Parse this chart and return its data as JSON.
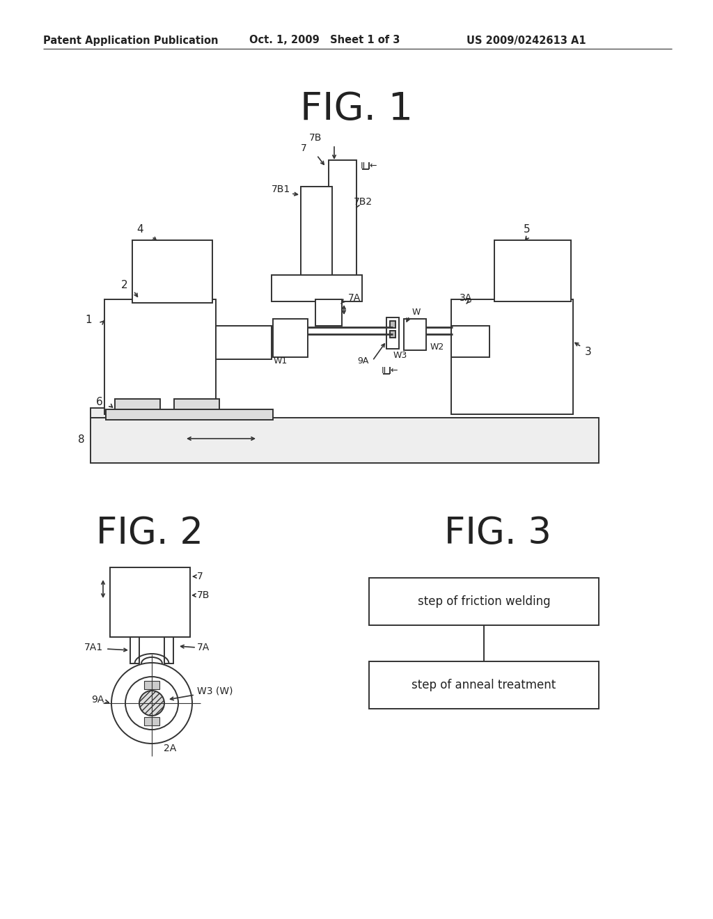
{
  "header_left": "Patent Application Publication",
  "header_mid": "Oct. 1, 2009   Sheet 1 of 3",
  "header_right": "US 2009/0242613 A1",
  "fig1_title": "FIG. 1",
  "fig2_title": "FIG. 2",
  "fig3_title": "FIG. 3",
  "fig3_box1": "step of friction welding",
  "fig3_box2": "step of anneal treatment",
  "bg_color": "#ffffff",
  "line_color": "#333333",
  "text_color": "#222222"
}
